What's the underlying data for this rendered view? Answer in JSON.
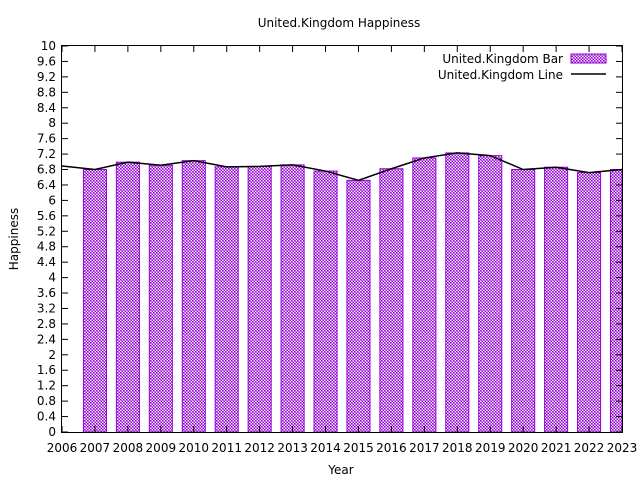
{
  "chart_data": {
    "type": "bar",
    "title": "United.Kingdom Happiness",
    "xlabel": "Year",
    "ylabel": "Happiness",
    "xlim": [
      2006,
      2023
    ],
    "ylim": [
      0,
      10
    ],
    "y_ticks": [
      "0",
      "0.4",
      "0.8",
      "1.2",
      "1.6",
      "2",
      "2.4",
      "2.8",
      "3.2",
      "3.6",
      "4",
      "4.4",
      "4.8",
      "5.2",
      "5.6",
      "6",
      "6.4",
      "6.8",
      "7.2",
      "7.6",
      "8",
      "8.4",
      "8.8",
      "9.2",
      "9.6",
      "10"
    ],
    "x_ticks": [
      "2006",
      "2007",
      "2008",
      "2009",
      "2010",
      "2011",
      "2012",
      "2013",
      "2014",
      "2015",
      "2016",
      "2017",
      "2018",
      "2019",
      "2020",
      "2021",
      "2022",
      "2023"
    ],
    "legend_position": "top-right",
    "grid": false,
    "series": [
      {
        "name": "United.Kingdom Bar",
        "kind": "bar",
        "color": "#9400d3",
        "x": [
          2007,
          2008,
          2009,
          2010,
          2011,
          2012,
          2013,
          2014,
          2015,
          2016,
          2017,
          2018,
          2019,
          2020,
          2021,
          2022,
          2023
        ],
        "values": [
          6.8,
          6.99,
          6.91,
          7.03,
          6.87,
          6.88,
          6.92,
          6.76,
          6.52,
          6.82,
          7.1,
          7.23,
          7.16,
          6.8,
          6.86,
          6.72,
          6.8
        ]
      },
      {
        "name": "United.Kingdom Line",
        "kind": "line",
        "color": "#000000",
        "x": [
          2006,
          2007,
          2008,
          2009,
          2010,
          2011,
          2012,
          2013,
          2014,
          2015,
          2016,
          2017,
          2018,
          2019,
          2020,
          2021,
          2022,
          2023
        ],
        "values": [
          6.89,
          6.8,
          6.99,
          6.91,
          7.03,
          6.87,
          6.88,
          6.92,
          6.76,
          6.52,
          6.82,
          7.1,
          7.23,
          7.16,
          6.8,
          6.86,
          6.72,
          6.8
        ]
      }
    ]
  }
}
